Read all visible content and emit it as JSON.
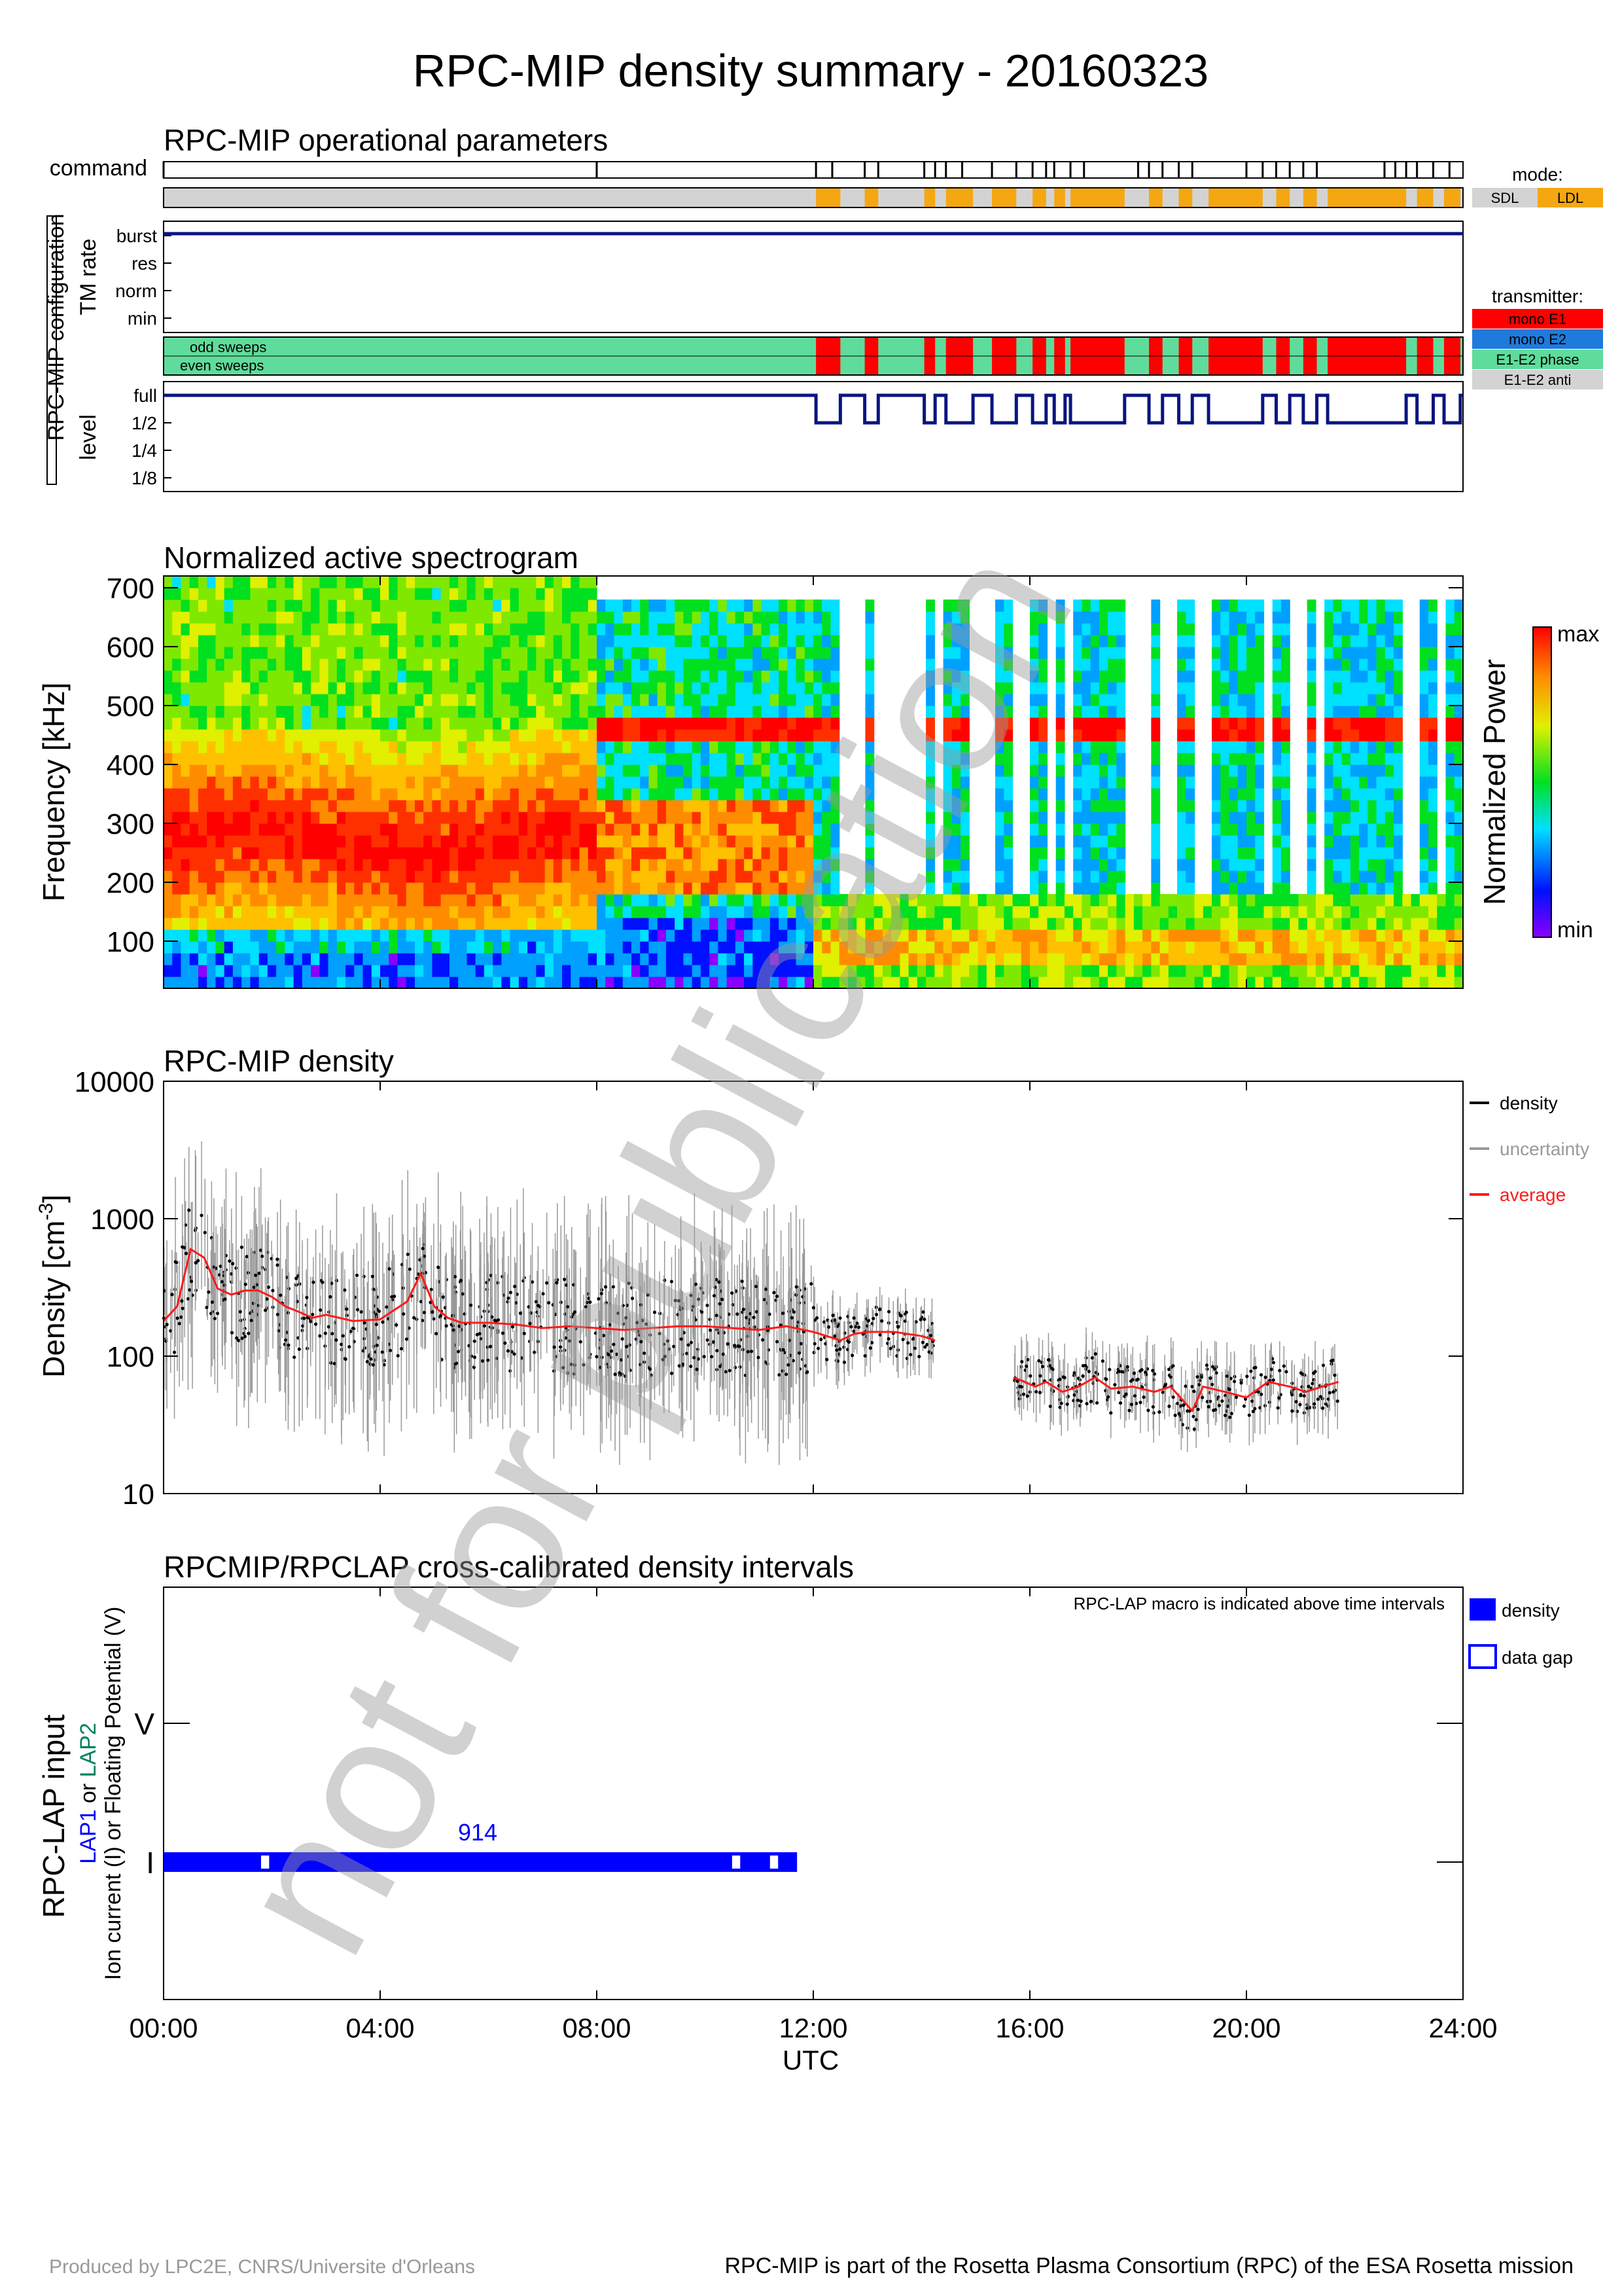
{
  "page": {
    "title": "RPC-MIP density summary - 20160323",
    "watermark": "not for publication",
    "footer_left": "Produced by LPC2E, CNRS/Universite d'Orleans",
    "footer_right": "RPC-MIP is part of the Rosetta Plasma Consortium (RPC) of the ESA Rosetta mission"
  },
  "colors": {
    "sdl": "#d3d3d3",
    "ldl": "#f5a712",
    "mono_e1": "#ff0000",
    "mono_e2": "#1f7bdb",
    "e1e2_phase": "#5fdc9b",
    "e1e2_anti": "#d3d3d3",
    "navy": "#0a1580",
    "density": "#000000",
    "uncertainty": "#999999",
    "average": "#ff1a1a",
    "lap_bar": "#0000ff",
    "lap1": "#0000ff",
    "lap2": "#008060"
  },
  "time_axis": {
    "ticks": [
      "00:00",
      "04:00",
      "08:00",
      "12:00",
      "16:00",
      "20:00",
      "24:00"
    ],
    "label": "UTC"
  },
  "panel1": {
    "title": "RPC-MIP operational parameters",
    "command_label": "command",
    "config_label": "RPC-MIP configuration",
    "tm_label": "TM rate",
    "tm_levels": [
      "burst",
      "res",
      "norm",
      "min"
    ],
    "sweep_odd": "odd sweeps",
    "sweep_even": "even sweeps",
    "level_label": "level",
    "level_levels": [
      "full",
      "1/2",
      "1/4",
      "1/8"
    ],
    "mode_title": "mode:",
    "mode_items": [
      "SDL",
      "LDL"
    ],
    "transmitter_title": "transmitter:",
    "transmitter_items": [
      "mono E1",
      "mono E2",
      "E1-E2 phase",
      "E1-E2 anti"
    ],
    "command_times_h": [
      0.0,
      8.0,
      12.05,
      12.35,
      12.95,
      13.2,
      14.05,
      14.25,
      14.45,
      14.75,
      15.3,
      15.75,
      16.05,
      16.3,
      16.45,
      16.75,
      17.0,
      18.0,
      18.2,
      18.45,
      18.75,
      19.0,
      20.0,
      20.3,
      20.55,
      20.8,
      21.05,
      21.3,
      22.55,
      22.75,
      22.95,
      23.15,
      23.45,
      23.75
    ],
    "ldl_intervals_h": [
      [
        12.05,
        12.5
      ],
      [
        12.95,
        13.2
      ],
      [
        14.05,
        14.25
      ],
      [
        14.45,
        14.95
      ],
      [
        15.3,
        15.75
      ],
      [
        16.05,
        16.3
      ],
      [
        16.45,
        16.65
      ],
      [
        16.75,
        17.75
      ],
      [
        18.2,
        18.45
      ],
      [
        18.75,
        19.0
      ],
      [
        19.3,
        20.3
      ],
      [
        20.55,
        20.8
      ],
      [
        21.05,
        21.3
      ],
      [
        21.5,
        22.95
      ],
      [
        23.15,
        23.45
      ],
      [
        23.65,
        23.95
      ]
    ],
    "tm_rate": "burst",
    "level_half_intervals_h": [
      [
        12.05,
        12.5
      ],
      [
        12.95,
        13.2
      ],
      [
        14.05,
        14.25
      ],
      [
        14.45,
        14.95
      ],
      [
        15.3,
        15.75
      ],
      [
        16.05,
        16.3
      ],
      [
        16.45,
        16.65
      ],
      [
        16.75,
        17.75
      ],
      [
        18.2,
        18.45
      ],
      [
        18.75,
        19.0
      ],
      [
        19.3,
        20.3
      ],
      [
        20.55,
        20.8
      ],
      [
        21.05,
        21.3
      ],
      [
        21.5,
        22.95
      ],
      [
        23.15,
        23.45
      ],
      [
        23.65,
        23.95
      ]
    ]
  },
  "panel2": {
    "title": "Normalized active spectrogram",
    "ylabel": "Frequency [kHz]",
    "yticks": [
      "100",
      "200",
      "300",
      "400",
      "500",
      "600",
      "700"
    ],
    "colorbar_label": "Normalized Power",
    "colorbar_max": "max",
    "colorbar_min": "min"
  },
  "panel3": {
    "title": "RPC-MIP density",
    "ylabel_main": "Density [cm",
    "ylabel_sup": "-3",
    "ylabel_end": "]",
    "yticks": [
      "10",
      "100",
      "1000",
      "10000"
    ],
    "legend": [
      "density",
      "uncertainty",
      "average"
    ]
  },
  "panel4": {
    "title": "RPCMIP/RPCLAP cross-calibrated density intervals",
    "note": "RPC-LAP macro is indicated above time intervals",
    "ylabel1": "RPC-LAP input",
    "ylabel2_lap1": "LAP1",
    "ylabel2_or": " or ",
    "ylabel2_lap2": "LAP2",
    "ylabel3": "Ion current (I) or Floating Potential (V)",
    "levels": [
      "V",
      "I"
    ],
    "legend": [
      "density",
      "data gap"
    ],
    "macro": "914"
  },
  "chart_data": [
    {
      "type": "line",
      "title": "RPC-MIP density",
      "xlabel": "UTC",
      "ylabel": "Density [cm-3]",
      "x_unit": "hours UTC",
      "ylim": [
        10,
        10000
      ],
      "y_scale": "log",
      "series": [
        {
          "name": "average",
          "x": [
            0.0,
            0.25,
            0.5,
            0.75,
            1.0,
            1.25,
            1.5,
            1.75,
            2.0,
            2.25,
            2.5,
            2.75,
            3.0,
            3.5,
            4.0,
            4.5,
            4.75,
            5.0,
            5.25,
            5.5,
            6.0,
            6.5,
            7.0,
            7.5,
            8.0,
            8.5,
            9.0,
            9.5,
            10.0,
            10.5,
            11.0,
            11.5,
            12.0,
            12.25,
            12.5,
            12.75,
            13.0,
            13.5,
            14.0,
            14.25
          ],
          "y": [
            180,
            230,
            600,
            520,
            310,
            280,
            300,
            300,
            270,
            230,
            210,
            190,
            200,
            180,
            185,
            250,
            400,
            230,
            190,
            175,
            175,
            170,
            160,
            165,
            160,
            155,
            160,
            165,
            165,
            160,
            155,
            165,
            150,
            140,
            130,
            145,
            150,
            150,
            140,
            130
          ]
        },
        {
          "name": "average",
          "x": [
            15.7,
            15.9,
            16.1,
            16.3,
            16.6,
            16.9,
            17.2,
            17.5,
            17.9,
            18.3,
            18.6,
            19.0,
            19.2,
            19.6,
            20.0,
            20.4,
            20.8,
            21.1,
            21.4,
            21.7
          ],
          "y": [
            70,
            65,
            60,
            65,
            55,
            60,
            70,
            58,
            60,
            55,
            60,
            40,
            60,
            55,
            50,
            65,
            60,
            55,
            60,
            65
          ]
        }
      ]
    },
    {
      "type": "heatmap",
      "title": "Normalized active spectrogram",
      "ylabel": "Frequency [kHz]",
      "ylim": [
        20,
        720
      ],
      "x_unit": "hours UTC",
      "band_center_khz": [
        {
          "x_range": [
            0.0,
            8.0
          ],
          "value": 260
        },
        {
          "x_range": [
            8.0,
            12.0
          ],
          "value": 250
        },
        {
          "x_range": [
            12.0,
            24.0
          ],
          "value": 90
        }
      ]
    },
    {
      "type": "bar",
      "title": "RPCMIP/RPCLAP cross-calibrated density intervals",
      "categories": [
        "I"
      ],
      "intervals_h": [
        [
          0.0,
          11.7
        ]
      ],
      "gaps_h": [
        [
          1.8,
          1.95
        ],
        [
          10.5,
          10.65
        ],
        [
          11.2,
          11.35
        ]
      ],
      "macro": "914"
    }
  ]
}
